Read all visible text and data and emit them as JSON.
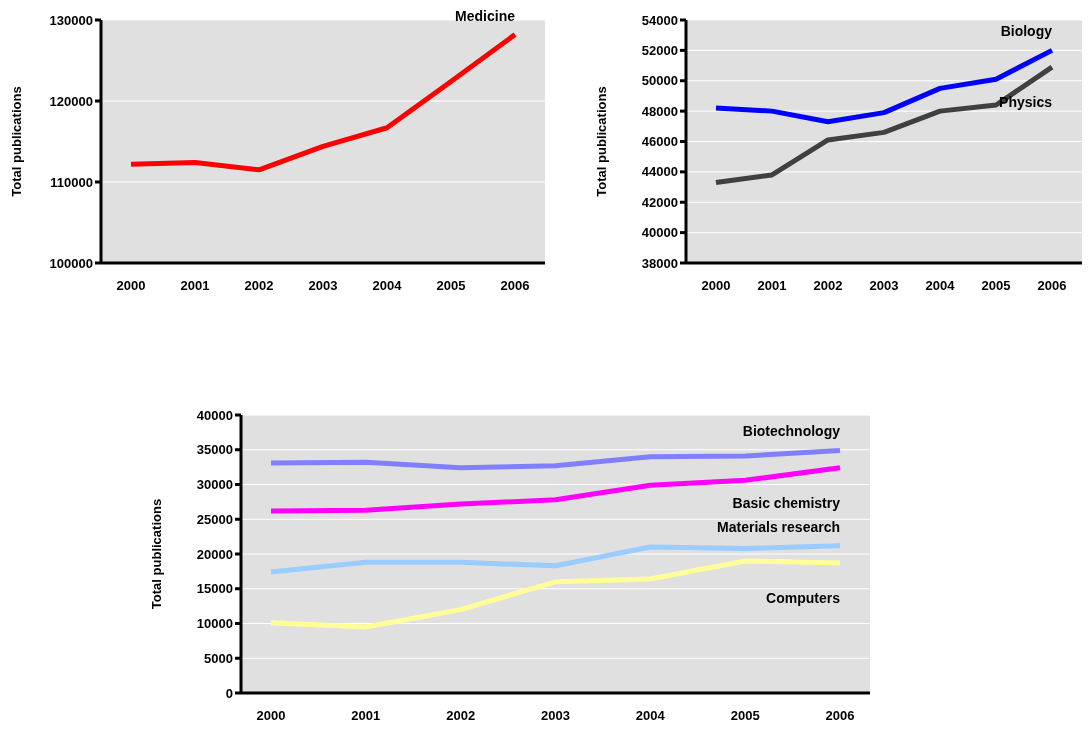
{
  "chart_data": [
    {
      "type": "line",
      "categories": [
        "2000",
        "2001",
        "2002",
        "2003",
        "2004",
        "2005",
        "2006"
      ],
      "ylabel": "Total publications",
      "ylim": [
        100000,
        130000
      ],
      "yticks": [
        100000,
        110000,
        120000,
        130000
      ],
      "grid": "y",
      "series": [
        {
          "name": "Medicine",
          "color": "#ff0000",
          "values": [
            112200,
            112400,
            111500,
            114400,
            116700,
            122400,
            128200
          ]
        }
      ]
    },
    {
      "type": "line",
      "categories": [
        "2000",
        "2001",
        "2002",
        "2003",
        "2004",
        "2005",
        "2006"
      ],
      "ylabel": "Total publications",
      "ylim": [
        38000,
        54000
      ],
      "yticks": [
        38000,
        40000,
        42000,
        44000,
        46000,
        48000,
        50000,
        52000,
        54000
      ],
      "grid": "y",
      "series": [
        {
          "name": "Biology",
          "color": "#0000ff",
          "values": [
            48200,
            48000,
            47300,
            47900,
            49500,
            50100,
            52000
          ]
        },
        {
          "name": "Physics",
          "color": "#404040",
          "values": [
            43300,
            43800,
            46100,
            46600,
            48000,
            48400,
            50900
          ]
        }
      ]
    },
    {
      "type": "line",
      "categories": [
        "2000",
        "2001",
        "2002",
        "2003",
        "2004",
        "2005",
        "2006"
      ],
      "ylabel": "Total publications",
      "ylim": [
        0,
        40000
      ],
      "yticks": [
        0,
        5000,
        10000,
        15000,
        20000,
        25000,
        30000,
        35000,
        40000
      ],
      "grid": "y",
      "series": [
        {
          "name": "Biotechnology",
          "color": "#8080ff",
          "values": [
            33100,
            33200,
            32400,
            32700,
            34000,
            34100,
            34900
          ]
        },
        {
          "name": "Basic chemistry",
          "color": "#ff00ff",
          "values": [
            26200,
            26300,
            27200,
            27800,
            29900,
            30600,
            32400
          ]
        },
        {
          "name": "Materials research",
          "color": "#99ccff",
          "values": [
            17400,
            18800,
            18800,
            18300,
            21000,
            20800,
            21200
          ]
        },
        {
          "name": "Computers",
          "color": "#ffff99",
          "values": [
            10100,
            9500,
            12000,
            16000,
            16400,
            19000,
            18700
          ]
        }
      ]
    }
  ]
}
